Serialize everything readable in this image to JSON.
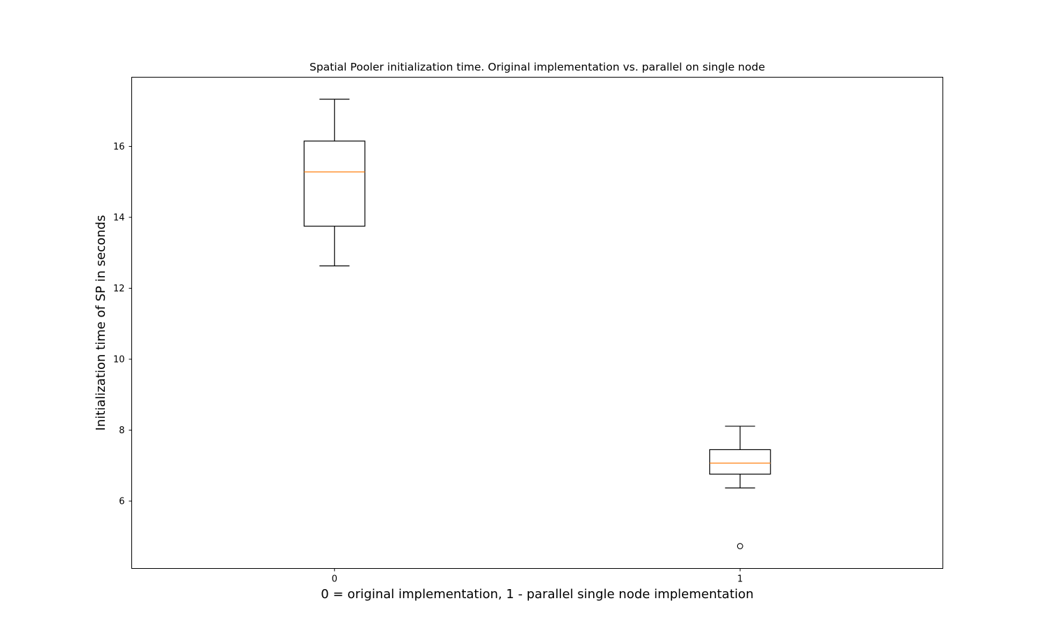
{
  "chart_data": {
    "type": "box",
    "title": "Spatial Pooler initialization time. Original implementation vs. parallel on single node",
    "xlabel": "0 = original implementation, 1 - parallel single node implementation",
    "ylabel": "Initialization time of SP in seconds",
    "ylim": [
      4.1,
      17.95
    ],
    "yticks": [
      "6",
      "8",
      "10",
      "12",
      "14",
      "16"
    ],
    "xticks": [
      "0",
      "1"
    ],
    "grid": false,
    "colors": {
      "box": "#000000",
      "median": "#ff7f0e"
    },
    "boxes": [
      {
        "label": "0",
        "whisker_low": 12.63,
        "q1": 13.75,
        "median": 15.28,
        "q3": 16.15,
        "whisker_high": 17.33,
        "outliers": []
      },
      {
        "label": "1",
        "whisker_low": 6.37,
        "q1": 6.76,
        "median": 7.07,
        "q3": 7.45,
        "whisker_high": 8.11,
        "outliers": [
          4.73
        ]
      }
    ]
  }
}
